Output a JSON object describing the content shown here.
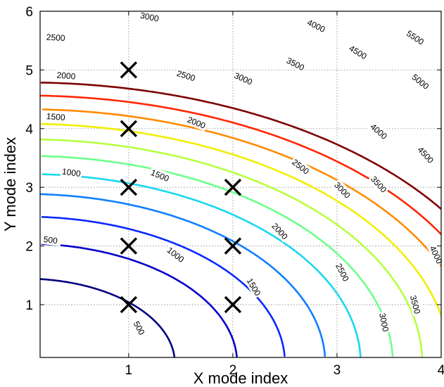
{
  "chart_data": {
    "type": "contour",
    "title": "",
    "xlabel": "X mode index",
    "ylabel": "Y mode index",
    "xlim": [
      0.15,
      4.0
    ],
    "ylim": [
      0.1,
      6.0
    ],
    "xticks": [
      "1",
      "2",
      "3",
      "4"
    ],
    "yticks": [
      "1",
      "2",
      "3",
      "4",
      "5",
      "6"
    ],
    "grid": true,
    "contour_levels": [
      500,
      1000,
      1500,
      2000,
      2500,
      3000,
      3500,
      4000,
      4500,
      5000,
      5500
    ],
    "level_colors": [
      "#00007f",
      "#0000c8",
      "#0a28ff",
      "#0f7fff",
      "#18d8f0",
      "#6dff8a",
      "#b6ff3f",
      "#f0ee00",
      "#ff8a00",
      "#ff2600",
      "#7f0000"
    ],
    "markers": {
      "symbol": "x",
      "points": [
        {
          "x": 1,
          "y": 1
        },
        {
          "x": 1,
          "y": 2
        },
        {
          "x": 1,
          "y": 3
        },
        {
          "x": 1,
          "y": 4
        },
        {
          "x": 1,
          "y": 5
        },
        {
          "x": 2,
          "y": 1
        },
        {
          "x": 2,
          "y": 2
        },
        {
          "x": 2,
          "y": 3
        }
      ]
    },
    "contour_labels": [
      {
        "text": "500",
        "x": 0.25,
        "y": 2.1
      },
      {
        "text": "500",
        "x": 1.1,
        "y": 0.6
      },
      {
        "text": "1000",
        "x": 0.45,
        "y": 3.25
      },
      {
        "text": "1000",
        "x": 1.45,
        "y": 1.85
      },
      {
        "text": "1500",
        "x": 0.3,
        "y": 4.2
      },
      {
        "text": "1500",
        "x": 1.3,
        "y": 3.2
      },
      {
        "text": "1500",
        "x": 2.2,
        "y": 1.3
      },
      {
        "text": "2000",
        "x": 0.4,
        "y": 4.9
      },
      {
        "text": "2000",
        "x": 1.65,
        "y": 4.1
      },
      {
        "text": "2000",
        "x": 2.45,
        "y": 2.25
      },
      {
        "text": "2500",
        "x": 0.3,
        "y": 5.55
      },
      {
        "text": "2500",
        "x": 1.55,
        "y": 4.9
      },
      {
        "text": "2500",
        "x": 2.65,
        "y": 3.35
      },
      {
        "text": "2500",
        "x": 3.05,
        "y": 1.55
      },
      {
        "text": "3000",
        "x": 1.2,
        "y": 5.9
      },
      {
        "text": "3000",
        "x": 2.1,
        "y": 4.85
      },
      {
        "text": "3000",
        "x": 3.05,
        "y": 2.95
      },
      {
        "text": "3000",
        "x": 3.45,
        "y": 0.7
      },
      {
        "text": "3500",
        "x": 2.6,
        "y": 5.1
      },
      {
        "text": "3500",
        "x": 3.4,
        "y": 3.05
      },
      {
        "text": "3500",
        "x": 3.75,
        "y": 1.0
      },
      {
        "text": "4000",
        "x": 2.8,
        "y": 5.75
      },
      {
        "text": "4000",
        "x": 3.4,
        "y": 3.95
      },
      {
        "text": "4000",
        "x": 3.95,
        "y": 1.85
      },
      {
        "text": "4500",
        "x": 3.2,
        "y": 5.3
      },
      {
        "text": "4500",
        "x": 3.85,
        "y": 3.55
      },
      {
        "text": "5000",
        "x": 3.8,
        "y": 4.8
      },
      {
        "text": "5500",
        "x": 3.75,
        "y": 5.55
      }
    ]
  }
}
